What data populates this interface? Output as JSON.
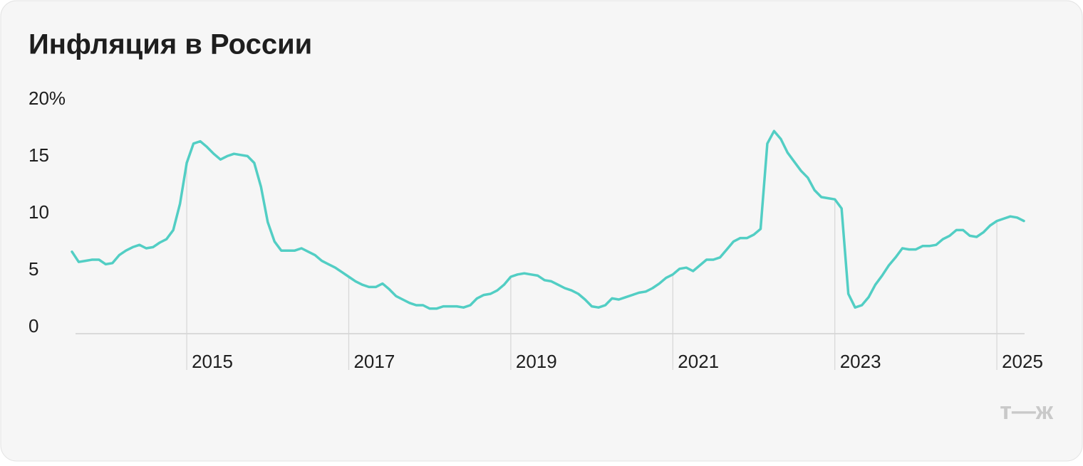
{
  "chart_data": {
    "type": "line",
    "title": "Инфляция в России",
    "logo": "т—ж",
    "categories": [
      null,
      null,
      null,
      null,
      null,
      null,
      null,
      null,
      null,
      null,
      null,
      null,
      null,
      null,
      null,
      null,
      null,
      "2015",
      null,
      null,
      null,
      null,
      null,
      null,
      null,
      null,
      null,
      null,
      null,
      null,
      null,
      null,
      null,
      null,
      null,
      null,
      null,
      null,
      null,
      null,
      null,
      "2017",
      null,
      null,
      null,
      null,
      null,
      null,
      null,
      null,
      null,
      null,
      null,
      null,
      null,
      null,
      null,
      null,
      null,
      null,
      null,
      null,
      null,
      null,
      null,
      "2019",
      null,
      null,
      null,
      null,
      null,
      null,
      null,
      null,
      null,
      null,
      null,
      null,
      null,
      null,
      null,
      null,
      null,
      null,
      null,
      null,
      null,
      null,
      null,
      "2021",
      null,
      null,
      null,
      null,
      null,
      null,
      null,
      null,
      null,
      null,
      null,
      null,
      null,
      null,
      null,
      null,
      null,
      null,
      null,
      null,
      null,
      null,
      null,
      "2023",
      null,
      null,
      null,
      null,
      null,
      null,
      null,
      null,
      null,
      null,
      null,
      null,
      null,
      null,
      null,
      null,
      null,
      null,
      null,
      null,
      null,
      null,
      null,
      "2025",
      null,
      null,
      null,
      null
    ],
    "values": [
      7.2,
      6.3,
      6.4,
      6.5,
      6.5,
      6.1,
      6.2,
      6.9,
      7.3,
      7.6,
      7.8,
      7.5,
      7.6,
      8.0,
      8.3,
      9.1,
      11.4,
      15.0,
      16.7,
      16.9,
      16.4,
      15.8,
      15.3,
      15.6,
      15.8,
      15.7,
      15.6,
      15.0,
      12.9,
      9.8,
      8.1,
      7.3,
      7.3,
      7.3,
      7.5,
      7.2,
      6.9,
      6.4,
      6.1,
      5.8,
      5.4,
      5.0,
      4.6,
      4.3,
      4.1,
      4.1,
      4.4,
      3.9,
      3.3,
      3.0,
      2.7,
      2.5,
      2.5,
      2.2,
      2.2,
      2.4,
      2.4,
      2.4,
      2.3,
      2.5,
      3.1,
      3.4,
      3.5,
      3.8,
      4.3,
      5.0,
      5.2,
      5.3,
      5.2,
      5.1,
      4.7,
      4.6,
      4.3,
      4.0,
      3.8,
      3.5,
      3.0,
      2.4,
      2.3,
      2.5,
      3.1,
      3.0,
      3.2,
      3.4,
      3.6,
      3.7,
      4.0,
      4.4,
      4.9,
      5.2,
      5.7,
      5.8,
      5.5,
      6.0,
      6.5,
      6.5,
      6.7,
      7.4,
      8.1,
      8.4,
      8.4,
      8.7,
      9.2,
      16.7,
      17.8,
      17.1,
      15.9,
      15.1,
      14.3,
      13.7,
      12.6,
      12.0,
      11.9,
      11.8,
      11.0,
      3.5,
      2.3,
      2.5,
      3.2,
      4.3,
      5.1,
      6.0,
      6.7,
      7.5,
      7.4,
      7.4,
      7.7,
      7.7,
      7.8,
      8.3,
      8.6,
      9.1,
      9.1,
      8.6,
      8.5,
      8.9,
      9.5,
      9.9,
      10.1,
      10.3,
      10.2,
      9.9
    ],
    "color": "#52cec4",
    "ylim": [
      0,
      20
    ],
    "yticks": [
      0,
      5,
      10,
      15,
      {
        "value": 20,
        "label": "20%"
      }
    ],
    "grid": false
  }
}
